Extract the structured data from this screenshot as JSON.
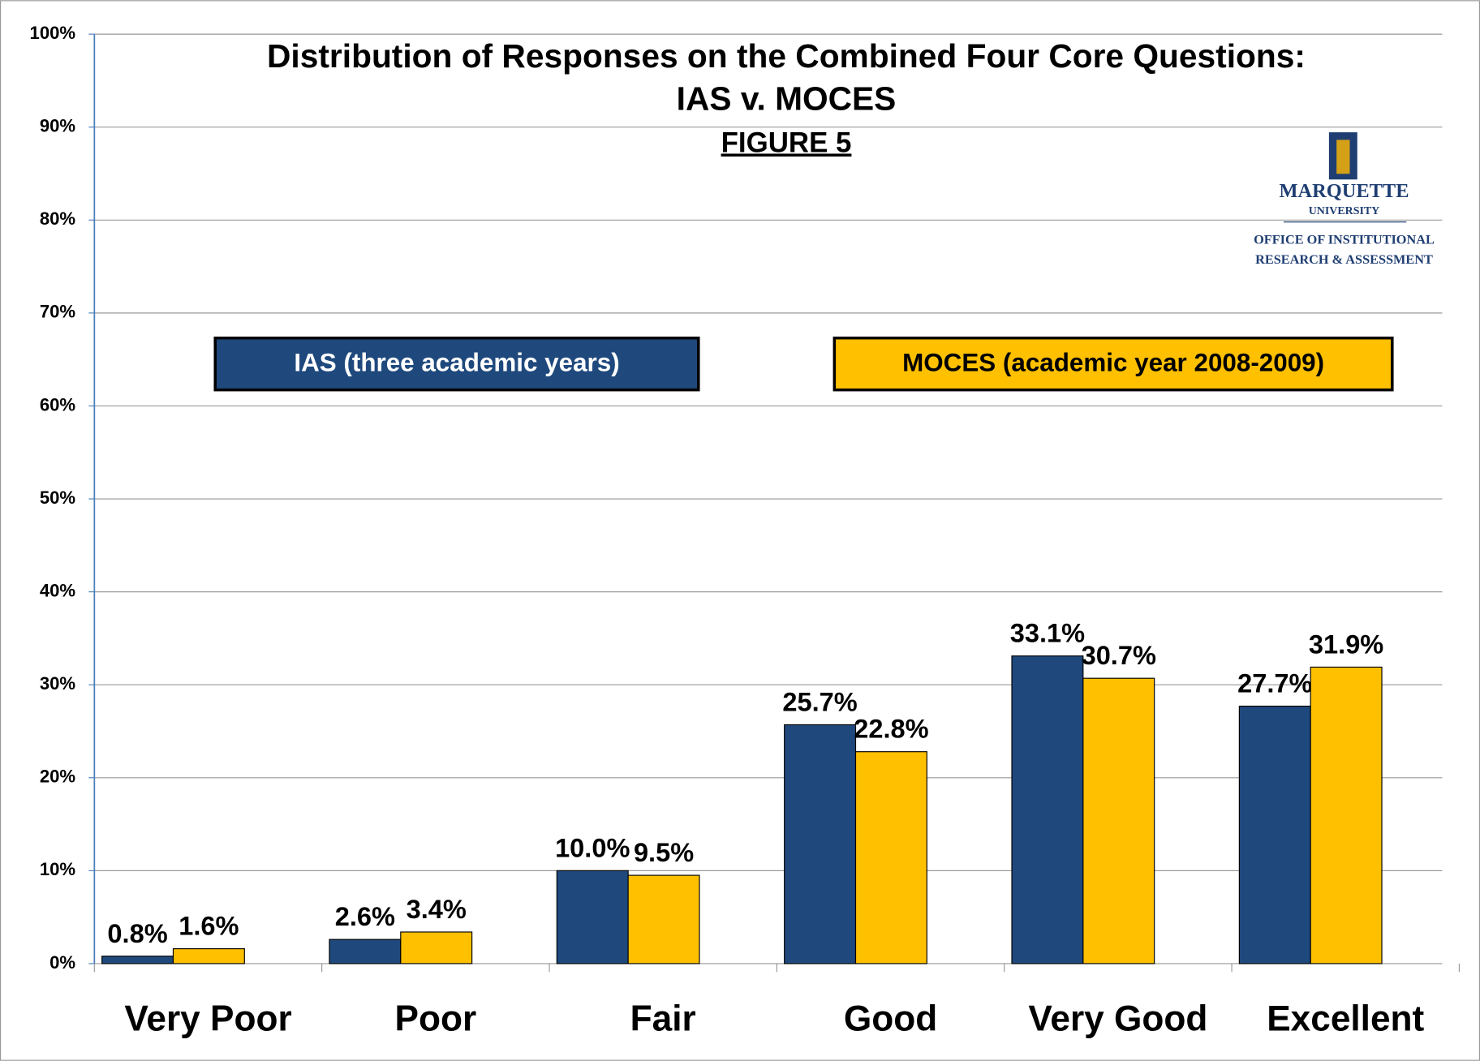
{
  "chart_data": {
    "type": "bar",
    "title": "Distribution of Responses on the Combined Four Core Questions:",
    "subtitle": "IAS v. MOCES",
    "figure_label": "FIGURE 5",
    "logo": {
      "name": "MARQUETTE",
      "sub": "UNIVERSITY",
      "office_line1": "OFFICE OF INSTITUTIONAL",
      "office_line2": "RESEARCH & ASSESSMENT"
    },
    "categories": [
      "Very Poor",
      "Poor",
      "Fair",
      "Good",
      "Very Good",
      "Excellent"
    ],
    "series": [
      {
        "name": "IAS (three academic years)",
        "color": "#1F497D",
        "values": [
          0.8,
          2.6,
          10.0,
          25.7,
          33.1,
          27.7
        ],
        "value_labels": [
          "0.8%",
          "2.6%",
          "10.0%",
          "25.7%",
          "33.1%",
          "27.7%"
        ]
      },
      {
        "name": "MOCES (academic year 2008-2009)",
        "color": "#FFC000",
        "values": [
          1.6,
          3.4,
          9.5,
          22.8,
          30.7,
          31.9
        ],
        "value_labels": [
          "1.6%",
          "3.4%",
          "9.5%",
          "22.8%",
          "30.7%",
          "31.9%"
        ]
      }
    ],
    "ylim": [
      0,
      100
    ],
    "yticks": [
      {
        "value": 0,
        "label": "0%"
      },
      {
        "value": 10,
        "label": "10%"
      },
      {
        "value": 20,
        "label": "20%"
      },
      {
        "value": 30,
        "label": "30%"
      },
      {
        "value": 40,
        "label": "40%"
      },
      {
        "value": 50,
        "label": "50%"
      },
      {
        "value": 60,
        "label": "60%"
      },
      {
        "value": 70,
        "label": "70%"
      },
      {
        "value": 80,
        "label": "80%"
      },
      {
        "value": 90,
        "label": "90%"
      },
      {
        "value": 100,
        "label": "100%"
      }
    ],
    "grid": true
  }
}
